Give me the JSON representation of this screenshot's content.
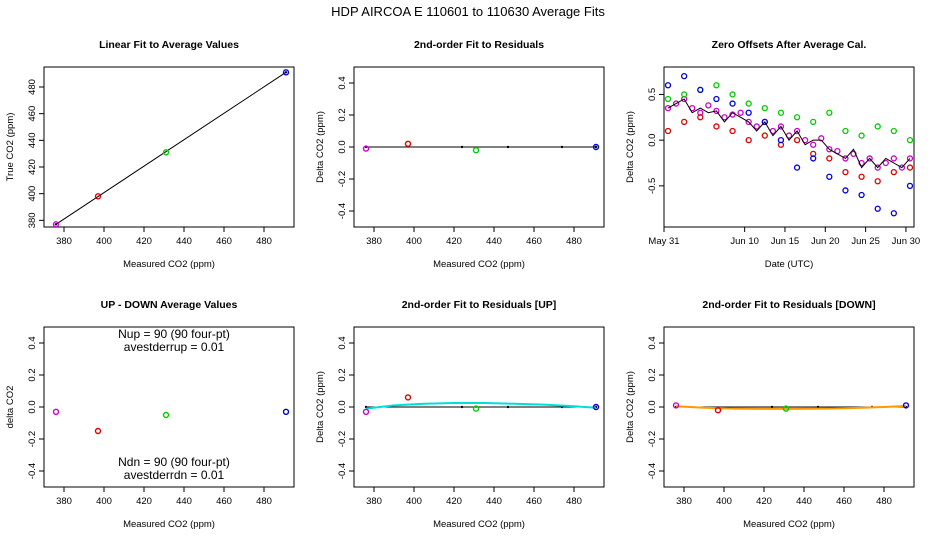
{
  "suptitle": "HDP   AIRCOA E   110601 to 110630   Average Fits",
  "colors": {
    "purple": "#cc00cc",
    "red": "#dd0000",
    "green": "#00cc00",
    "blue": "#0000dd",
    "black": "#000000",
    "cyan": "#00dddd",
    "orange": "#ff9900"
  },
  "chart_data": [
    {
      "type": "scatter",
      "title": "Linear Fit to Average Values",
      "xlabel": "Measured CO2 (ppm)",
      "ylabel": "True CO2 (ppm)",
      "xlim": [
        370,
        495
      ],
      "ylim": [
        375,
        495
      ],
      "xticks": [
        380,
        400,
        420,
        440,
        460,
        480
      ],
      "yticks": [
        380,
        400,
        420,
        440,
        460,
        480
      ],
      "points": [
        {
          "x": 376,
          "y": 377,
          "color": "purple"
        },
        {
          "x": 397,
          "y": 398,
          "color": "red"
        },
        {
          "x": 431,
          "y": 431,
          "color": "green"
        },
        {
          "x": 491,
          "y": 491,
          "color": "blue"
        }
      ],
      "lines": [
        {
          "x": [
            376,
            491
          ],
          "y": [
            377,
            491
          ],
          "color": "black"
        }
      ]
    },
    {
      "type": "scatter",
      "title": "2nd-order Fit to Residuals",
      "xlabel": "Measured CO2 (ppm)",
      "ylabel": "Delta CO2 (ppm)",
      "xlim": [
        370,
        495
      ],
      "ylim": [
        -0.5,
        0.5
      ],
      "xticks": [
        380,
        400,
        420,
        440,
        460,
        480
      ],
      "yticks": [
        -0.4,
        -0.2,
        0.0,
        0.2,
        0.4
      ],
      "points": [
        {
          "x": 376,
          "y": -0.01,
          "color": "purple"
        },
        {
          "x": 397,
          "y": 0.02,
          "color": "red"
        },
        {
          "x": 431,
          "y": -0.02,
          "color": "green"
        },
        {
          "x": 491,
          "y": 0.0,
          "color": "blue"
        }
      ],
      "lines": [
        {
          "x": [
            376,
            424,
            447,
            474,
            491
          ],
          "y": [
            0.0,
            0.0,
            0.0,
            0.0,
            0.0
          ],
          "color": "black"
        }
      ]
    },
    {
      "type": "scatter",
      "title": "Zero Offsets After Average Cal.",
      "xlabel": "Date (UTC)",
      "ylabel": "Delta CO2 (ppm)",
      "xlim": [
        0,
        31
      ],
      "ylim": [
        -0.95,
        0.8
      ],
      "xticks": [
        0,
        10,
        15,
        20,
        25,
        30
      ],
      "xticklabels": [
        "May 31",
        "Jun 10",
        "Jun 15",
        "Jun 20",
        "Jun 25",
        "Jun 30"
      ],
      "yticks": [
        -0.5,
        0.0,
        0.5
      ],
      "series": [
        {
          "name": "purple",
          "x": [
            0.5,
            1.5,
            2.5,
            3.5,
            4.5,
            5.5,
            6.5,
            7.5,
            8.5,
            9.5,
            10.5,
            11.5,
            12.5,
            13.5,
            14.5,
            15.5,
            16.5,
            17.5,
            18.5,
            19.5,
            20.5,
            21.5,
            22.5,
            23.5,
            24.5,
            25.5,
            26.5,
            27.5,
            28.5,
            29.5,
            30.5
          ],
          "y": [
            0.35,
            0.4,
            0.45,
            0.35,
            0.3,
            0.38,
            0.32,
            0.25,
            0.28,
            0.3,
            0.2,
            0.15,
            0.2,
            0.1,
            0.15,
            0.05,
            0.1,
            0.0,
            -0.05,
            0.02,
            -0.1,
            -0.12,
            -0.2,
            -0.15,
            -0.25,
            -0.2,
            -0.3,
            -0.25,
            -0.2,
            -0.3,
            -0.2
          ]
        },
        {
          "name": "red",
          "x": [
            0.5,
            2.5,
            4.5,
            6.5,
            8.5,
            10.5,
            12.5,
            14.5,
            16.5,
            18.5,
            20.5,
            22.5,
            24.5,
            26.5,
            28.5,
            30.5
          ],
          "y": [
            0.1,
            0.2,
            0.25,
            0.15,
            0.1,
            0.0,
            0.05,
            -0.05,
            0.0,
            -0.15,
            -0.2,
            -0.35,
            -0.4,
            -0.45,
            -0.35,
            -0.3
          ]
        },
        {
          "name": "green",
          "x": [
            0.5,
            2.5,
            4.5,
            6.5,
            8.5,
            10.5,
            12.5,
            14.5,
            16.5,
            18.5,
            20.5,
            22.5,
            24.5,
            26.5,
            28.5,
            30.5
          ],
          "y": [
            0.45,
            0.5,
            0.55,
            0.6,
            0.5,
            0.4,
            0.35,
            0.3,
            0.25,
            0.2,
            0.3,
            0.1,
            0.05,
            0.15,
            0.1,
            0.0
          ]
        },
        {
          "name": "blue",
          "x": [
            0.5,
            2.5,
            4.5,
            6.5,
            8.5,
            10.5,
            12.5,
            14.5,
            16.5,
            18.5,
            20.5,
            22.5,
            24.5,
            26.5,
            28.5,
            30.5
          ],
          "y": [
            0.6,
            0.7,
            0.55,
            0.45,
            0.4,
            0.3,
            0.2,
            0.0,
            -0.3,
            -0.2,
            -0.4,
            -0.55,
            -0.6,
            -0.75,
            -0.8,
            -0.5
          ]
        },
        {
          "name": "black",
          "x": [
            0.5,
            1.5,
            2.5,
            3.5,
            4.5,
            5.5,
            6.5,
            7.5,
            8.5,
            9.5,
            10.5,
            11.5,
            12.5,
            13.5,
            14.5,
            15.5,
            16.5,
            17.5,
            18.5,
            19.5,
            20.5,
            21.5,
            22.5,
            23.5,
            24.5,
            25.5,
            26.5,
            27.5,
            28.5,
            29.5,
            30.5
          ],
          "y": [
            0.35,
            0.4,
            0.45,
            0.3,
            0.35,
            0.3,
            0.32,
            0.2,
            0.3,
            0.25,
            0.2,
            0.1,
            0.2,
            0.05,
            0.15,
            0.0,
            0.1,
            -0.05,
            0.0,
            0.0,
            -0.1,
            -0.15,
            -0.2,
            -0.1,
            -0.3,
            -0.2,
            -0.3,
            -0.2,
            -0.25,
            -0.3,
            -0.2
          ]
        }
      ]
    },
    {
      "type": "scatter",
      "title": "UP - DOWN Average Values",
      "xlabel": "Measured CO2 (ppm)",
      "ylabel": "delta CO2",
      "xlim": [
        370,
        495
      ],
      "ylim": [
        -0.5,
        0.5
      ],
      "xticks": [
        380,
        400,
        420,
        440,
        460,
        480
      ],
      "yticks": [
        -0.4,
        -0.2,
        0.0,
        0.2,
        0.4
      ],
      "points": [
        {
          "x": 376,
          "y": -0.03,
          "color": "purple"
        },
        {
          "x": 397,
          "y": -0.15,
          "color": "red"
        },
        {
          "x": 431,
          "y": -0.05,
          "color": "green"
        },
        {
          "x": 491,
          "y": -0.03,
          "color": "blue"
        }
      ],
      "annotations": {
        "nup": "Nup = 90 (90 four-pt)",
        "avestdup": "avestderrup =  0.01",
        "ndn": "Ndn = 90 (90 four-pt)",
        "avestddn": "avestderrdn =  0.01"
      }
    },
    {
      "type": "scatter",
      "title": "2nd-order Fit to Residuals [UP]",
      "xlabel": "Measured CO2 (ppm)",
      "ylabel": "Delta CO2 (ppm)",
      "xlim": [
        370,
        495
      ],
      "ylim": [
        -0.5,
        0.5
      ],
      "xticks": [
        380,
        400,
        420,
        440,
        460,
        480
      ],
      "yticks": [
        -0.4,
        -0.2,
        0.0,
        0.2,
        0.4
      ],
      "points": [
        {
          "x": 376,
          "y": -0.03,
          "color": "purple"
        },
        {
          "x": 397,
          "y": 0.06,
          "color": "red"
        },
        {
          "x": 431,
          "y": -0.01,
          "color": "green"
        },
        {
          "x": 491,
          "y": 0.0,
          "color": "blue"
        }
      ],
      "lines": [
        {
          "x": [
            376,
            424,
            447,
            474,
            491
          ],
          "y": [
            0.0,
            0.0,
            0.0,
            0.0,
            0.0
          ],
          "color": "black"
        },
        {
          "x": [
            376,
            390,
            405,
            420,
            435,
            450,
            465,
            480,
            491
          ],
          "y": [
            -0.01,
            0.01,
            0.02,
            0.025,
            0.025,
            0.02,
            0.015,
            0.005,
            -0.005
          ],
          "color": "cyan"
        }
      ]
    },
    {
      "type": "scatter",
      "title": "2nd-order Fit to Residuals [DOWN]",
      "xlabel": "Measured CO2 (ppm)",
      "ylabel": "Delta CO2 (ppm)",
      "xlim": [
        370,
        495
      ],
      "ylim": [
        -0.5,
        0.5
      ],
      "xticks": [
        380,
        400,
        420,
        440,
        460,
        480
      ],
      "yticks": [
        -0.4,
        -0.2,
        0.0,
        0.2,
        0.4
      ],
      "points": [
        {
          "x": 376,
          "y": 0.01,
          "color": "purple"
        },
        {
          "x": 397,
          "y": -0.02,
          "color": "red"
        },
        {
          "x": 431,
          "y": -0.01,
          "color": "green"
        },
        {
          "x": 491,
          "y": 0.01,
          "color": "blue"
        }
      ],
      "lines": [
        {
          "x": [
            376,
            424,
            447,
            474,
            491
          ],
          "y": [
            0.0,
            0.0,
            0.0,
            0.0,
            0.0
          ],
          "color": "black"
        },
        {
          "x": [
            376,
            390,
            405,
            420,
            435,
            450,
            465,
            480,
            491
          ],
          "y": [
            0.005,
            -0.005,
            -0.01,
            -0.012,
            -0.012,
            -0.01,
            -0.006,
            0.0,
            0.006
          ],
          "color": "orange"
        }
      ]
    }
  ]
}
